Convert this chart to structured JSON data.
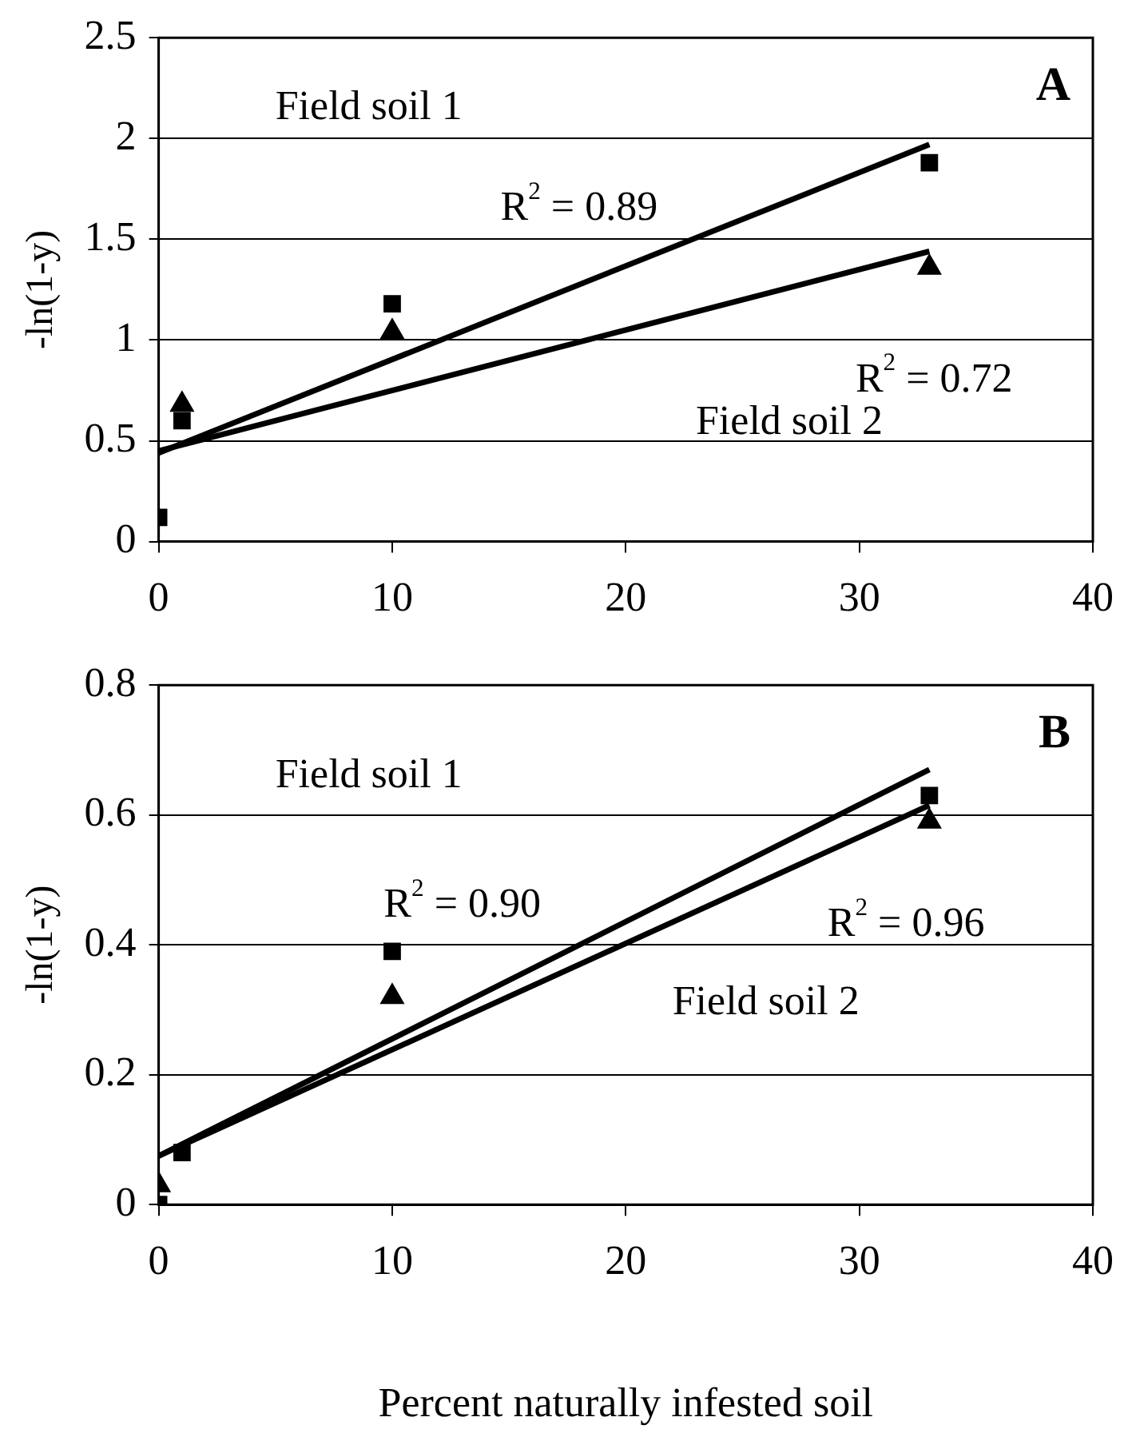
{
  "chart_data": [
    {
      "type": "scatter",
      "ylabel": "-ln(1-y)",
      "xlim": [
        0,
        40
      ],
      "xticks": [
        0,
        10,
        20,
        30,
        40
      ],
      "ylim": [
        0,
        2.5
      ],
      "yticks": [
        0,
        0.5,
        1,
        1.5,
        2,
        2.5
      ],
      "grid": "y",
      "legend": false,
      "series": [
        {
          "type": "scatter",
          "marker": "square",
          "color": "#000000",
          "x": [
            0,
            1,
            10,
            33
          ],
          "values": [
            0.12,
            0.6,
            1.18,
            1.88
          ]
        },
        {
          "type": "scatter",
          "marker": "triangle",
          "color": "#000000",
          "x": [
            1,
            10,
            33
          ],
          "values": [
            0.68,
            1.04,
            1.36
          ]
        },
        {
          "type": "line",
          "marker": "none",
          "color": "#000000",
          "x": [
            0,
            33
          ],
          "values": [
            0.44,
            1.97
          ]
        },
        {
          "type": "line",
          "marker": "none",
          "color": "#000000",
          "x": [
            0,
            33
          ],
          "values": [
            0.45,
            1.44
          ]
        }
      ],
      "annotations": [
        "A",
        "Field soil 1",
        "R$^{2}$ = 0.89",
        "R$^{2}$ = 0.72",
        "Field soil 2"
      ]
    },
    {
      "type": "scatter",
      "ylabel": "-ln(1-y)",
      "xlabel": "Percent naturally infested soil",
      "xlim": [
        0,
        40
      ],
      "xticks": [
        0,
        10,
        20,
        30,
        40
      ],
      "ylim": [
        0,
        0.8
      ],
      "yticks": [
        0,
        0.2,
        0.4,
        0.6,
        0.8
      ],
      "grid": "y",
      "legend": false,
      "series": [
        {
          "type": "scatter",
          "marker": "square",
          "color": "#000000",
          "x": [
            0,
            1,
            10,
            33
          ],
          "values": [
            0.0,
            0.08,
            0.39,
            0.63
          ]
        },
        {
          "type": "scatter",
          "marker": "triangle",
          "color": "#000000",
          "x": [
            0,
            10,
            33
          ],
          "values": [
            0.03,
            0.32,
            0.59
          ]
        },
        {
          "type": "line",
          "marker": "none",
          "color": "#000000",
          "x": [
            0,
            33
          ],
          "values": [
            0.075,
            0.67
          ]
        },
        {
          "type": "line",
          "marker": "none",
          "color": "#000000",
          "x": [
            0,
            33
          ],
          "values": [
            0.075,
            0.615
          ]
        }
      ],
      "annotations": [
        "B",
        "Field soil 1",
        "R$^{2}$ = 0.90",
        "R$^{2}$ = 0.96",
        "Field soil 2"
      ]
    }
  ]
}
